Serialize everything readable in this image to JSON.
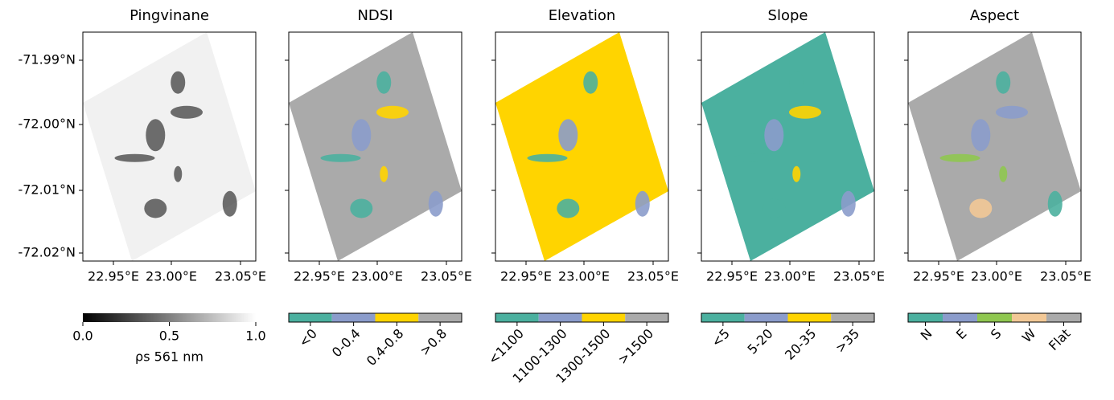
{
  "yticks": [
    "-71.99°N",
    "-72.00°N",
    "-72.01°N",
    "-72.02°N"
  ],
  "panels": [
    {
      "title": "Pingvinane",
      "xticks": [
        "22.95°E",
        "23.00°E",
        "23.05°E"
      ],
      "fill": "#f1f1f1",
      "colorbar": {
        "kind": "gradient",
        "colors": [
          "#000000",
          "#ffffff"
        ],
        "ticks": [
          "0.0",
          "0.5",
          "1.0"
        ],
        "label": "ρs 561 nm"
      }
    },
    {
      "title": "NDSI",
      "xticks": [
        "22.95°E",
        "23.00°E",
        "23.05°E"
      ],
      "fill": "#aaaaaa",
      "colorbar": {
        "kind": "segments",
        "colors": [
          "#4bb09f",
          "#8b9ccb",
          "#ffd400",
          "#aaaaaa"
        ],
        "ticks": [
          "<0",
          "0-0.4",
          "0.4-0.8",
          ">0.8"
        ]
      }
    },
    {
      "title": "Elevation",
      "xticks": [
        "22.95°E",
        "23.00°E",
        "23.05°E"
      ],
      "fill": "#ffd400",
      "colorbar": {
        "kind": "segments",
        "colors": [
          "#4bb09f",
          "#8b9ccb",
          "#ffd400",
          "#aaaaaa"
        ],
        "ticks": [
          "<1100",
          "1100-1300",
          "1300-1500",
          ">1500"
        ]
      }
    },
    {
      "title": "Slope",
      "xticks": [
        "22.95°E",
        "23.00°E",
        "23.05°E"
      ],
      "fill": "#4bb09f",
      "colorbar": {
        "kind": "segments",
        "colors": [
          "#4bb09f",
          "#8b9ccb",
          "#ffd400",
          "#aaaaaa"
        ],
        "ticks": [
          "<5",
          "5-20",
          "20-35",
          ">35"
        ]
      }
    },
    {
      "title": "Aspect",
      "xticks": [
        "22.95°E",
        "23.00°E",
        "23.05°E"
      ],
      "fill": "#aaaaaa",
      "colorbar": {
        "kind": "segments",
        "colors": [
          "#4bb09f",
          "#8b9ccb",
          "#8fc750",
          "#f2c896",
          "#aaaaaa"
        ],
        "ticks": [
          "N",
          "E",
          "S",
          "W",
          "Flat"
        ]
      }
    }
  ]
}
